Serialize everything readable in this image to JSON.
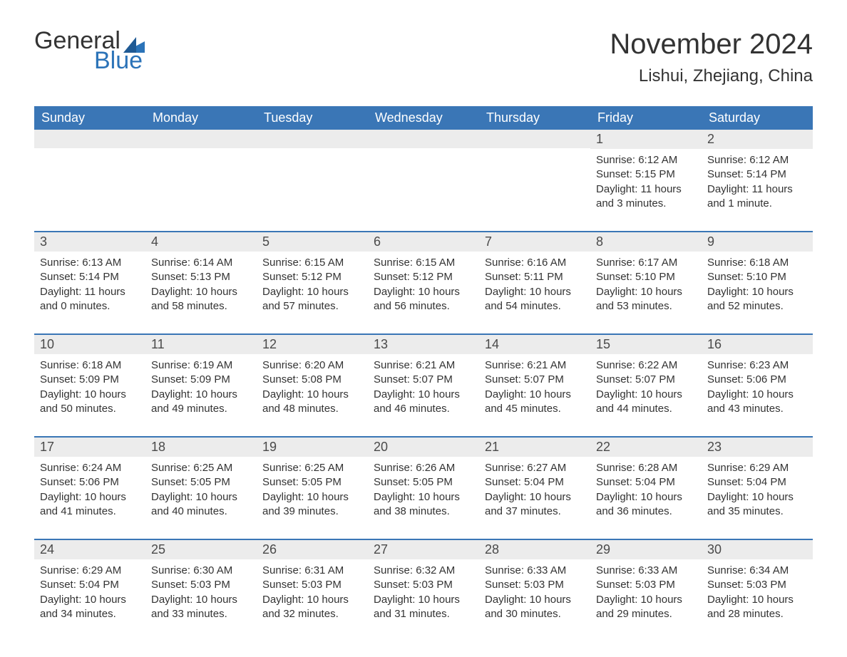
{
  "logo": {
    "text1": "General",
    "text2": "Blue"
  },
  "title": "November 2024",
  "location": "Lishui, Zhejiang, China",
  "colors": {
    "header_bg": "#3a76b6",
    "header_text": "#ffffff",
    "daynum_bg": "#ececec",
    "body_text": "#333333",
    "logo_blue": "#2b73b8",
    "rule": "#3a76b6"
  },
  "day_headers": [
    "Sunday",
    "Monday",
    "Tuesday",
    "Wednesday",
    "Thursday",
    "Friday",
    "Saturday"
  ],
  "weeks": [
    [
      {
        "n": "",
        "sunrise": "",
        "sunset": "",
        "daylight": ""
      },
      {
        "n": "",
        "sunrise": "",
        "sunset": "",
        "daylight": ""
      },
      {
        "n": "",
        "sunrise": "",
        "sunset": "",
        "daylight": ""
      },
      {
        "n": "",
        "sunrise": "",
        "sunset": "",
        "daylight": ""
      },
      {
        "n": "",
        "sunrise": "",
        "sunset": "",
        "daylight": ""
      },
      {
        "n": "1",
        "sunrise": "Sunrise: 6:12 AM",
        "sunset": "Sunset: 5:15 PM",
        "daylight": "Daylight: 11 hours and 3 minutes."
      },
      {
        "n": "2",
        "sunrise": "Sunrise: 6:12 AM",
        "sunset": "Sunset: 5:14 PM",
        "daylight": "Daylight: 11 hours and 1 minute."
      }
    ],
    [
      {
        "n": "3",
        "sunrise": "Sunrise: 6:13 AM",
        "sunset": "Sunset: 5:14 PM",
        "daylight": "Daylight: 11 hours and 0 minutes."
      },
      {
        "n": "4",
        "sunrise": "Sunrise: 6:14 AM",
        "sunset": "Sunset: 5:13 PM",
        "daylight": "Daylight: 10 hours and 58 minutes."
      },
      {
        "n": "5",
        "sunrise": "Sunrise: 6:15 AM",
        "sunset": "Sunset: 5:12 PM",
        "daylight": "Daylight: 10 hours and 57 minutes."
      },
      {
        "n": "6",
        "sunrise": "Sunrise: 6:15 AM",
        "sunset": "Sunset: 5:12 PM",
        "daylight": "Daylight: 10 hours and 56 minutes."
      },
      {
        "n": "7",
        "sunrise": "Sunrise: 6:16 AM",
        "sunset": "Sunset: 5:11 PM",
        "daylight": "Daylight: 10 hours and 54 minutes."
      },
      {
        "n": "8",
        "sunrise": "Sunrise: 6:17 AM",
        "sunset": "Sunset: 5:10 PM",
        "daylight": "Daylight: 10 hours and 53 minutes."
      },
      {
        "n": "9",
        "sunrise": "Sunrise: 6:18 AM",
        "sunset": "Sunset: 5:10 PM",
        "daylight": "Daylight: 10 hours and 52 minutes."
      }
    ],
    [
      {
        "n": "10",
        "sunrise": "Sunrise: 6:18 AM",
        "sunset": "Sunset: 5:09 PM",
        "daylight": "Daylight: 10 hours and 50 minutes."
      },
      {
        "n": "11",
        "sunrise": "Sunrise: 6:19 AM",
        "sunset": "Sunset: 5:09 PM",
        "daylight": "Daylight: 10 hours and 49 minutes."
      },
      {
        "n": "12",
        "sunrise": "Sunrise: 6:20 AM",
        "sunset": "Sunset: 5:08 PM",
        "daylight": "Daylight: 10 hours and 48 minutes."
      },
      {
        "n": "13",
        "sunrise": "Sunrise: 6:21 AM",
        "sunset": "Sunset: 5:07 PM",
        "daylight": "Daylight: 10 hours and 46 minutes."
      },
      {
        "n": "14",
        "sunrise": "Sunrise: 6:21 AM",
        "sunset": "Sunset: 5:07 PM",
        "daylight": "Daylight: 10 hours and 45 minutes."
      },
      {
        "n": "15",
        "sunrise": "Sunrise: 6:22 AM",
        "sunset": "Sunset: 5:07 PM",
        "daylight": "Daylight: 10 hours and 44 minutes."
      },
      {
        "n": "16",
        "sunrise": "Sunrise: 6:23 AM",
        "sunset": "Sunset: 5:06 PM",
        "daylight": "Daylight: 10 hours and 43 minutes."
      }
    ],
    [
      {
        "n": "17",
        "sunrise": "Sunrise: 6:24 AM",
        "sunset": "Sunset: 5:06 PM",
        "daylight": "Daylight: 10 hours and 41 minutes."
      },
      {
        "n": "18",
        "sunrise": "Sunrise: 6:25 AM",
        "sunset": "Sunset: 5:05 PM",
        "daylight": "Daylight: 10 hours and 40 minutes."
      },
      {
        "n": "19",
        "sunrise": "Sunrise: 6:25 AM",
        "sunset": "Sunset: 5:05 PM",
        "daylight": "Daylight: 10 hours and 39 minutes."
      },
      {
        "n": "20",
        "sunrise": "Sunrise: 6:26 AM",
        "sunset": "Sunset: 5:05 PM",
        "daylight": "Daylight: 10 hours and 38 minutes."
      },
      {
        "n": "21",
        "sunrise": "Sunrise: 6:27 AM",
        "sunset": "Sunset: 5:04 PM",
        "daylight": "Daylight: 10 hours and 37 minutes."
      },
      {
        "n": "22",
        "sunrise": "Sunrise: 6:28 AM",
        "sunset": "Sunset: 5:04 PM",
        "daylight": "Daylight: 10 hours and 36 minutes."
      },
      {
        "n": "23",
        "sunrise": "Sunrise: 6:29 AM",
        "sunset": "Sunset: 5:04 PM",
        "daylight": "Daylight: 10 hours and 35 minutes."
      }
    ],
    [
      {
        "n": "24",
        "sunrise": "Sunrise: 6:29 AM",
        "sunset": "Sunset: 5:04 PM",
        "daylight": "Daylight: 10 hours and 34 minutes."
      },
      {
        "n": "25",
        "sunrise": "Sunrise: 6:30 AM",
        "sunset": "Sunset: 5:03 PM",
        "daylight": "Daylight: 10 hours and 33 minutes."
      },
      {
        "n": "26",
        "sunrise": "Sunrise: 6:31 AM",
        "sunset": "Sunset: 5:03 PM",
        "daylight": "Daylight: 10 hours and 32 minutes."
      },
      {
        "n": "27",
        "sunrise": "Sunrise: 6:32 AM",
        "sunset": "Sunset: 5:03 PM",
        "daylight": "Daylight: 10 hours and 31 minutes."
      },
      {
        "n": "28",
        "sunrise": "Sunrise: 6:33 AM",
        "sunset": "Sunset: 5:03 PM",
        "daylight": "Daylight: 10 hours and 30 minutes."
      },
      {
        "n": "29",
        "sunrise": "Sunrise: 6:33 AM",
        "sunset": "Sunset: 5:03 PM",
        "daylight": "Daylight: 10 hours and 29 minutes."
      },
      {
        "n": "30",
        "sunrise": "Sunrise: 6:34 AM",
        "sunset": "Sunset: 5:03 PM",
        "daylight": "Daylight: 10 hours and 28 minutes."
      }
    ]
  ]
}
